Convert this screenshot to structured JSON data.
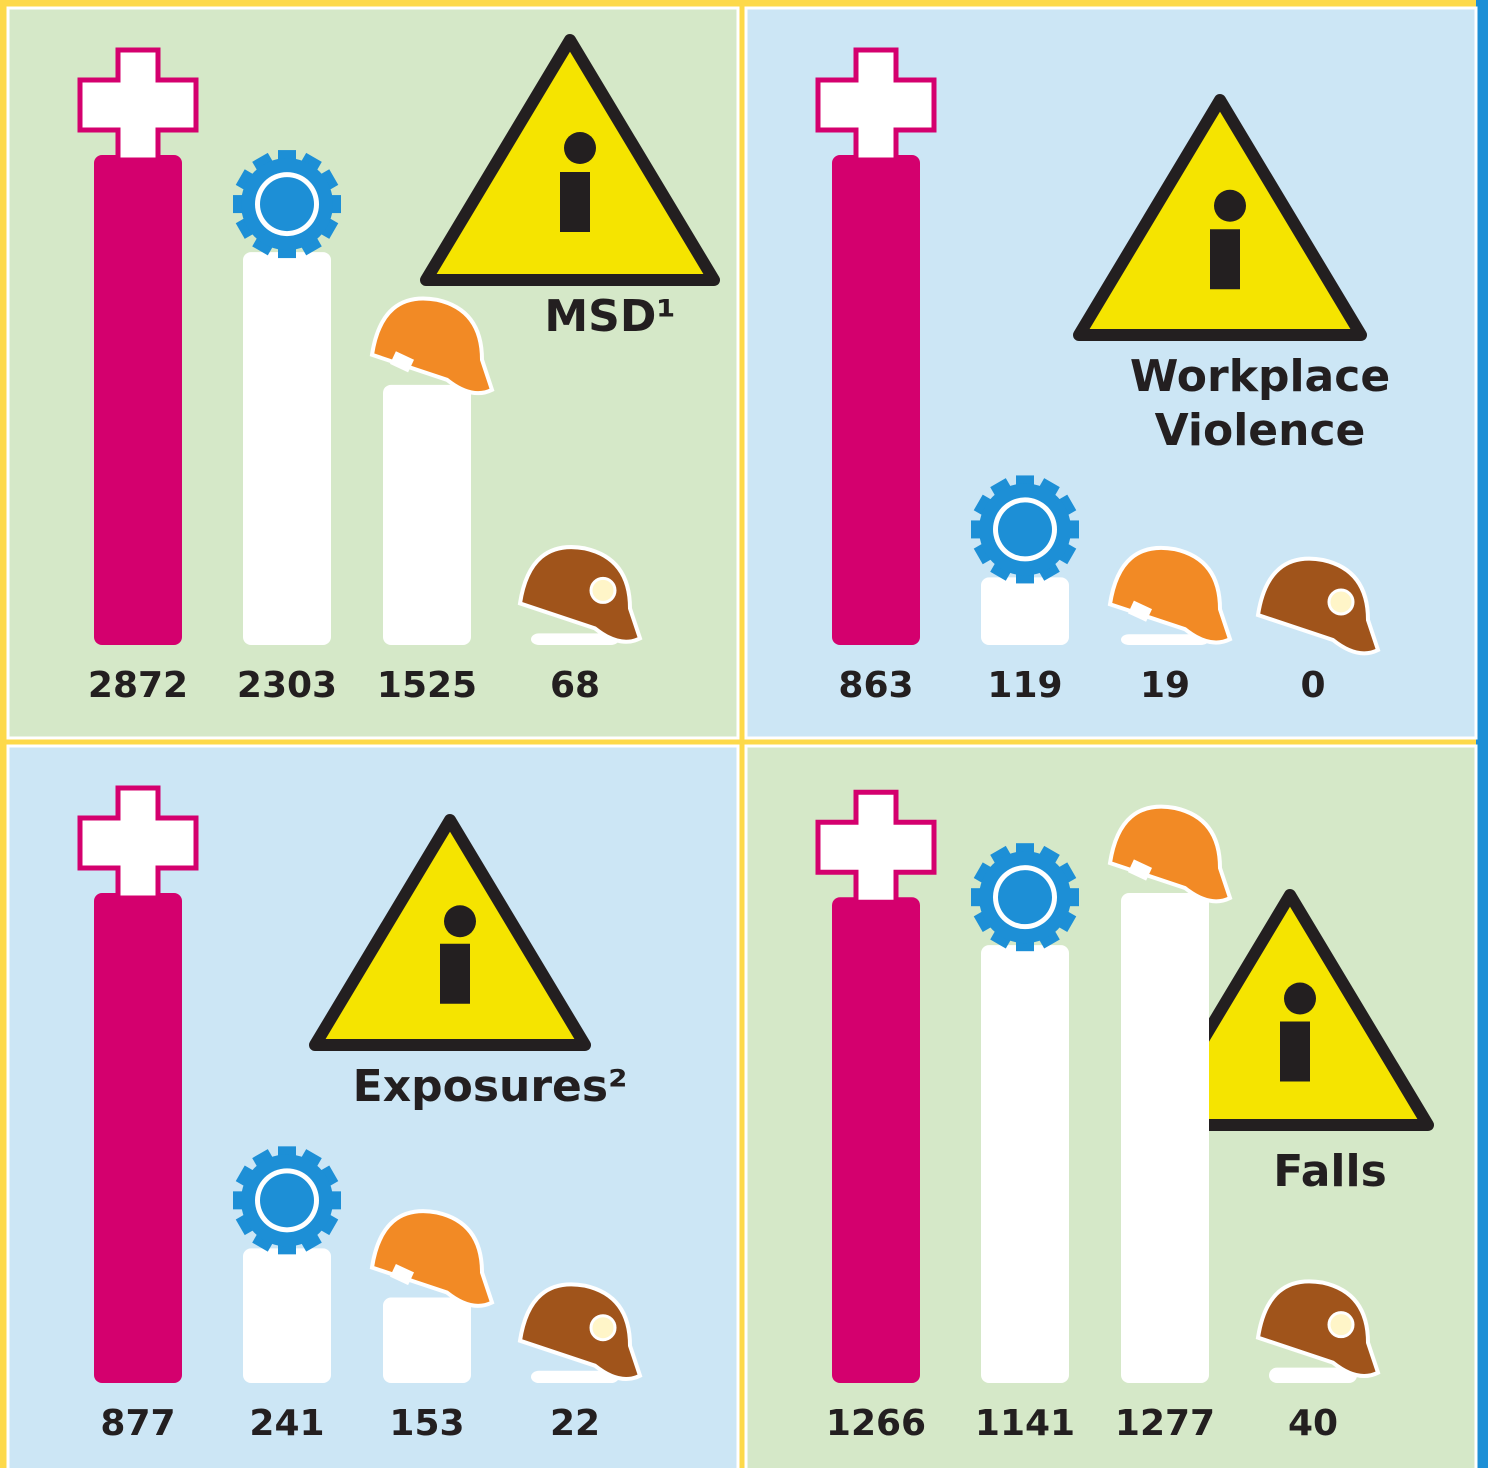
{
  "chart_data": [
    {
      "type": "bar",
      "title": "MSD¹",
      "values": [
        2872,
        2303,
        1525,
        68
      ],
      "colors": [
        "#d4006e",
        "#ffffff",
        "#ffffff",
        "#ffffff"
      ]
    },
    {
      "type": "bar",
      "title": "Workplace Violence",
      "values": [
        863,
        119,
        19,
        0
      ],
      "colors": [
        "#d4006e",
        "#ffffff",
        "#ffffff",
        "#ffffff"
      ]
    },
    {
      "type": "bar",
      "title": "Exposures²",
      "values": [
        877,
        241,
        153,
        22
      ],
      "colors": [
        "#d4006e",
        "#ffffff",
        "#ffffff",
        "#ffffff"
      ]
    },
    {
      "type": "bar",
      "title": "Falls",
      "values": [
        1266,
        1141,
        1277,
        40
      ],
      "colors": [
        "#d4006e",
        "#ffffff",
        "#ffffff",
        "#ffffff"
      ]
    }
  ]
}
